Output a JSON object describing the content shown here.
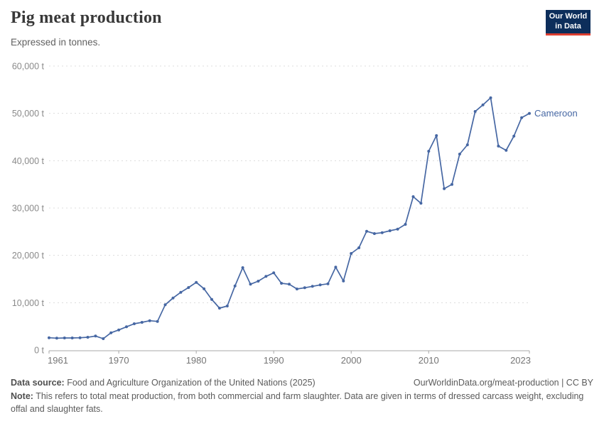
{
  "header": {
    "title": "Pig meat production",
    "subtitle": "Expressed in tonnes.",
    "logo_line1": "Our World",
    "logo_line2": "in Data",
    "logo_bg": "#0d2e5b",
    "logo_accent": "#dc3e30"
  },
  "chart_data": {
    "type": "line",
    "title": "Pig meat production",
    "xlabel": "",
    "ylabel": "tonnes",
    "unit": "t",
    "xlim": [
      1961,
      2023
    ],
    "ylim": [
      0,
      60000
    ],
    "grid": "dashed-horizontal",
    "legend_position": "end-of-line",
    "x_ticks": [
      1961,
      1970,
      1980,
      1990,
      2000,
      2010,
      2023
    ],
    "y_ticks": [
      0,
      10000,
      20000,
      30000,
      40000,
      50000,
      60000
    ],
    "y_tick_labels": [
      "0 t",
      "10,000 t",
      "20,000 t",
      "30,000 t",
      "40,000 t",
      "50,000 t",
      "60,000 t"
    ],
    "series": [
      {
        "name": "Cameroon",
        "color": "#4667a3",
        "x": [
          1961,
          1962,
          1963,
          1964,
          1965,
          1966,
          1967,
          1968,
          1969,
          1970,
          1971,
          1972,
          1973,
          1974,
          1975,
          1976,
          1977,
          1978,
          1979,
          1980,
          1981,
          1982,
          1983,
          1984,
          1985,
          1986,
          1987,
          1988,
          1989,
          1990,
          1991,
          1992,
          1993,
          1994,
          1995,
          1996,
          1997,
          1998,
          1999,
          2000,
          2001,
          2002,
          2003,
          2004,
          2005,
          2006,
          2007,
          2008,
          2009,
          2010,
          2011,
          2012,
          2013,
          2014,
          2015,
          2016,
          2017,
          2018,
          2019,
          2020,
          2021,
          2022,
          2023
        ],
        "values": [
          2600,
          2500,
          2550,
          2550,
          2600,
          2700,
          2950,
          2400,
          3650,
          4250,
          4900,
          5550,
          5850,
          6200,
          6050,
          9550,
          11000,
          12200,
          13200,
          14300,
          12950,
          10700,
          8850,
          9300,
          13550,
          17400,
          13900,
          14550,
          15550,
          16300,
          14100,
          13900,
          12900,
          13150,
          13450,
          13750,
          14000,
          17500,
          14600,
          20400,
          21600,
          25100,
          24600,
          24800,
          25200,
          25550,
          26550,
          32400,
          31000,
          42000,
          45300,
          34100,
          35000,
          41400,
          43350,
          50400,
          51800,
          53300,
          43100,
          42200,
          45200,
          49100,
          50000
        ]
      }
    ]
  },
  "footer": {
    "source_label": "Data source:",
    "source_text": " Food and Agriculture Organization of the United Nations (2025)",
    "link_text": "OurWorldinData.org/meat-production | CC BY",
    "note_label": "Note:",
    "note_text": " This refers to total meat production, from both commercial and farm slaughter. Data are given in terms of dressed carcass weight, excluding offal and slaughter fats."
  }
}
